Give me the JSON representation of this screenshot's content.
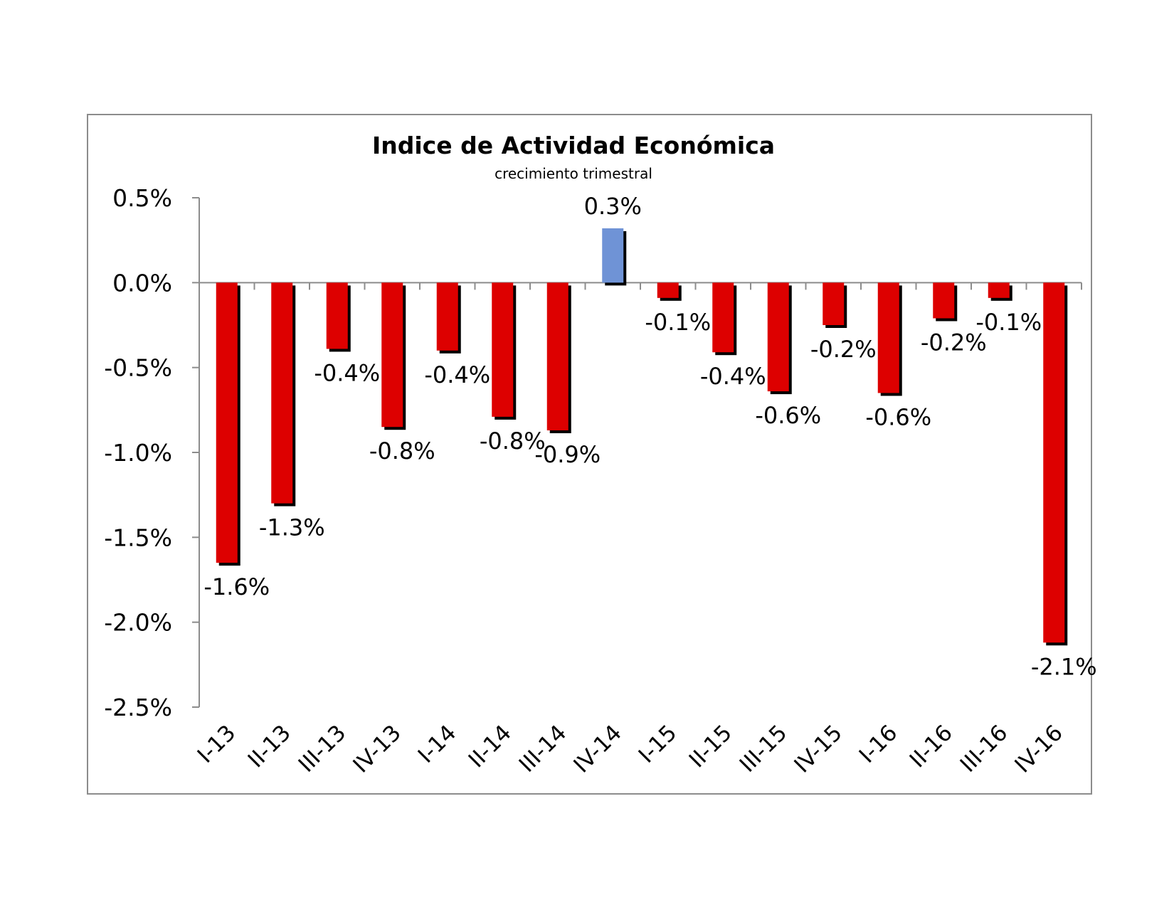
{
  "chart_data": {
    "type": "bar",
    "title": "Indice de Actividad Económica",
    "subtitle": "crecimiento trimestral",
    "categories": [
      "I-13",
      "II-13",
      "III-13",
      "IV-13",
      "I-14",
      "II-14",
      "III-14",
      "IV-14",
      "I-15",
      "II-15",
      "III-15",
      "IV-15",
      "I-16",
      "II-16",
      "III-16",
      "IV-16"
    ],
    "values": [
      -1.65,
      -1.3,
      -0.39,
      -0.85,
      -0.4,
      -0.79,
      -0.87,
      0.32,
      -0.09,
      -0.41,
      -0.64,
      -0.25,
      -0.65,
      -0.21,
      -0.09,
      -2.12
    ],
    "data_labels": [
      "-1.6%",
      "-1.3%",
      "-0.4%",
      "-0.8%",
      "-0.4%",
      "-0.8%",
      "-0.9%",
      "0.3%",
      "-0.1%",
      "-0.4%",
      "-0.6%",
      "-0.2%",
      "-0.6%",
      "-0.2%",
      "-0.1%",
      "-2.1%"
    ],
    "y_ticks": [
      0.5,
      0.0,
      -0.5,
      -1.0,
      -1.5,
      -2.0,
      -2.5
    ],
    "y_tick_labels": [
      "0.5%",
      "0.0%",
      "-0.5%",
      "-1.0%",
      "-1.5%",
      "-2.0%",
      "-2.5%"
    ],
    "ylim": [
      -2.5,
      0.5
    ],
    "grid": false,
    "legend": "none",
    "colors": {
      "negative": "#dd0000",
      "positive": "#6f93d6",
      "shadow": "#000000",
      "frame": "#8c8c8c"
    }
  }
}
